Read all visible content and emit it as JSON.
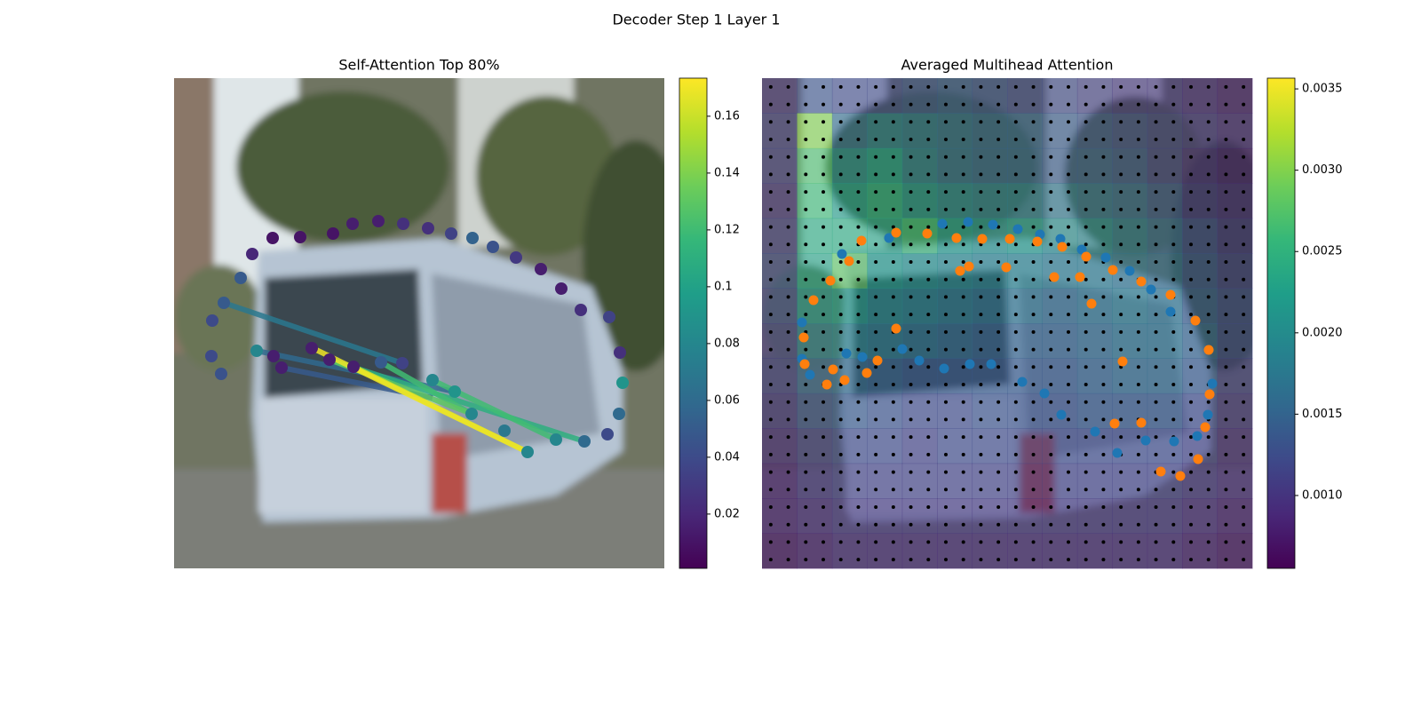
{
  "title": "Decoder Step 1 Layer 1",
  "chart_data": [
    {
      "type": "attention_links",
      "title": "Self-Attention Top 80%",
      "xlim": [
        0,
        552
      ],
      "ylim": [
        552,
        0
      ],
      "points": {
        "x": [
          111,
          142,
          179,
          201,
          230,
          258,
          286,
          312,
          336,
          359,
          385,
          413,
          436,
          458,
          490,
          502,
          505,
          501,
          488,
          462,
          430,
          398,
          372,
          335,
          316,
          291,
          257,
          233,
          202,
          175,
          155,
          112,
          121,
          93,
          53,
          42,
          43,
          56,
          75,
          88
        ],
        "y": [
          180,
          179,
          175,
          164,
          161,
          164,
          169,
          175,
          180,
          190,
          202,
          215,
          237,
          261,
          269,
          309,
          343,
          378,
          401,
          409,
          407,
          421,
          397,
          378,
          353,
          340,
          321,
          320,
          325,
          317,
          304,
          313,
          326,
          307,
          333,
          313,
          273,
          253,
          225,
          198
        ],
        "values": [
          0.01,
          0.01,
          0.01,
          0.015,
          0.015,
          0.025,
          0.025,
          0.035,
          0.055,
          0.045,
          0.03,
          0.015,
          0.015,
          0.025,
          0.035,
          0.025,
          0.09,
          0.06,
          0.04,
          0.06,
          0.08,
          0.08,
          0.07,
          0.08,
          0.09,
          0.08,
          0.035,
          0.05,
          0.015,
          0.015,
          0.015,
          0.015,
          0.015,
          0.08,
          0.045,
          0.04,
          0.04,
          0.05,
          0.05,
          0.02
        ]
      },
      "links": [
        {
          "x": [
            56,
            257
          ],
          "y": [
            253,
            321
          ],
          "value": 0.07
        },
        {
          "x": [
            121,
            291
          ],
          "y": [
            326,
            360
          ],
          "value": 0.05
        },
        {
          "x": [
            93,
            316
          ],
          "y": [
            307,
            353
          ],
          "value": 0.06
        },
        {
          "x": [
            175,
            462
          ],
          "y": [
            317,
            409
          ],
          "value": 0.11
        },
        {
          "x": [
            291,
            430
          ],
          "y": [
            340,
            407
          ],
          "value": 0.12
        },
        {
          "x": [
            233,
            335
          ],
          "y": [
            320,
            378
          ],
          "value": 0.12
        },
        {
          "x": [
            175,
            335
          ],
          "y": [
            317,
            378
          ],
          "value": 0.13
        },
        {
          "x": [
            202,
            398
          ],
          "y": [
            325,
            421
          ],
          "value": 0.16
        },
        {
          "x": [
            156,
            398
          ],
          "y": [
            304,
            421
          ],
          "value": 0.17
        }
      ],
      "colorbar": {
        "lim": [
          0.0009,
          0.1734
        ],
        "ticks": [
          0.02,
          0.04,
          0.06,
          0.08,
          0.1,
          0.12,
          0.14,
          0.16
        ]
      }
    },
    {
      "type": "heatmap",
      "title": "Averaged Multihead Attention",
      "xlim": [
        0,
        552
      ],
      "ylim": [
        552,
        0
      ],
      "heatmap": [
        [
          0.0011,
          0.0013,
          0.0012,
          0.0012,
          0.0013,
          0.0014,
          0.0013,
          0.0012,
          0.0012,
          0.0011,
          0.001,
          0.001,
          0.0009,
          0.0008
        ],
        [
          0.0012,
          0.003,
          0.0016,
          0.0018,
          0.0017,
          0.0016,
          0.0015,
          0.0015,
          0.0014,
          0.0013,
          0.0012,
          0.0011,
          0.001,
          0.0009
        ],
        [
          0.0012,
          0.0027,
          0.002,
          0.0022,
          0.0018,
          0.0016,
          0.0015,
          0.0015,
          0.0014,
          0.0014,
          0.0013,
          0.0011,
          0.0009,
          0.0008
        ],
        [
          0.0011,
          0.0026,
          0.0022,
          0.0024,
          0.0021,
          0.0019,
          0.0018,
          0.0018,
          0.0017,
          0.0016,
          0.0015,
          0.0013,
          0.001,
          0.0009
        ],
        [
          0.0012,
          0.0024,
          0.0024,
          0.0023,
          0.0026,
          0.0022,
          0.0021,
          0.0022,
          0.002,
          0.0019,
          0.0017,
          0.0015,
          0.0012,
          0.001
        ],
        [
          0.0013,
          0.0023,
          0.0028,
          0.0022,
          0.0021,
          0.002,
          0.0019,
          0.0019,
          0.0018,
          0.0018,
          0.0017,
          0.0016,
          0.0013,
          0.0011
        ],
        [
          0.0012,
          0.0021,
          0.0022,
          0.002,
          0.0019,
          0.0018,
          0.0017,
          0.0017,
          0.0016,
          0.0017,
          0.0018,
          0.0017,
          0.0014,
          0.0012
        ],
        [
          0.0011,
          0.0018,
          0.0019,
          0.0018,
          0.0017,
          0.0016,
          0.0015,
          0.0015,
          0.0015,
          0.0016,
          0.0017,
          0.0017,
          0.0015,
          0.0012
        ],
        [
          0.0011,
          0.0015,
          0.0016,
          0.0015,
          0.0014,
          0.0014,
          0.0014,
          0.0014,
          0.0014,
          0.0015,
          0.0016,
          0.0016,
          0.0014,
          0.0011
        ],
        [
          0.001,
          0.0013,
          0.0014,
          0.0013,
          0.0012,
          0.0012,
          0.0013,
          0.0013,
          0.0013,
          0.0014,
          0.0014,
          0.0014,
          0.0012,
          0.001
        ],
        [
          0.0009,
          0.0011,
          0.0012,
          0.0012,
          0.0011,
          0.0012,
          0.0012,
          0.0012,
          0.0012,
          0.0012,
          0.0012,
          0.0012,
          0.0011,
          0.0009
        ],
        [
          0.0008,
          0.001,
          0.0011,
          0.0011,
          0.0011,
          0.0011,
          0.0011,
          0.0011,
          0.0011,
          0.0011,
          0.0011,
          0.0011,
          0.001,
          0.0009
        ],
        [
          0.0008,
          0.0009,
          0.001,
          0.001,
          0.001,
          0.001,
          0.001,
          0.001,
          0.001,
          0.001,
          0.001,
          0.001,
          0.0009,
          0.0008
        ],
        [
          0.0007,
          0.0008,
          0.0009,
          0.0009,
          0.0009,
          0.0009,
          0.0009,
          0.0009,
          0.0009,
          0.0009,
          0.0009,
          0.0009,
          0.0008,
          0.0007
        ]
      ],
      "series": [
        {
          "color": "#1f77b4",
          "x": [
            90,
            143,
            203,
            232,
            260,
            288,
            313,
            336,
            360,
            387,
            414,
            438,
            460,
            45,
            45,
            54,
            95,
            113,
            158,
            177,
            205,
            234,
            258,
            293,
            318,
            337,
            375,
            400,
            432,
            464,
            490,
            502,
            507
          ],
          "y": [
            198,
            180,
            164,
            162,
            165,
            170,
            176,
            181,
            193,
            202,
            217,
            238,
            263,
            275,
            316,
            334,
            310,
            314,
            305,
            318,
            327,
            322,
            322,
            342,
            355,
            379,
            398,
            422,
            408,
            409,
            403,
            379,
            344
          ]
        },
        {
          "color": "#ff7f0e",
          "x": [
            98,
            112,
            151,
            186,
            219,
            248,
            279,
            310,
            338,
            365,
            395,
            427,
            460,
            488,
            503,
            504,
            499,
            491,
            471,
            449,
            427,
            397,
            406,
            371,
            358,
            329,
            275,
            233,
            223,
            151,
            130,
            118,
            93,
            80,
            73,
            48,
            47,
            58,
            77
          ],
          "y": [
            206,
            183,
            174,
            175,
            180,
            181,
            181,
            184,
            190,
            201,
            216,
            229,
            244,
            273,
            306,
            356,
            393,
            429,
            448,
            443,
            388,
            389,
            319,
            254,
            224,
            224,
            213,
            212,
            217,
            282,
            318,
            332,
            340,
            328,
            345,
            322,
            292,
            250,
            228
          ]
        }
      ],
      "colorbar": {
        "lim": [
          0.000552,
          0.003566
        ],
        "ticks": [
          {
            "value": 0.001,
            "label": "0.0010"
          },
          0.0015,
          {
            "value": 0.002,
            "label": "0.0020"
          },
          0.0025,
          {
            "value": 0.003,
            "label": "0.0030"
          },
          0.0035
        ]
      }
    }
  ]
}
